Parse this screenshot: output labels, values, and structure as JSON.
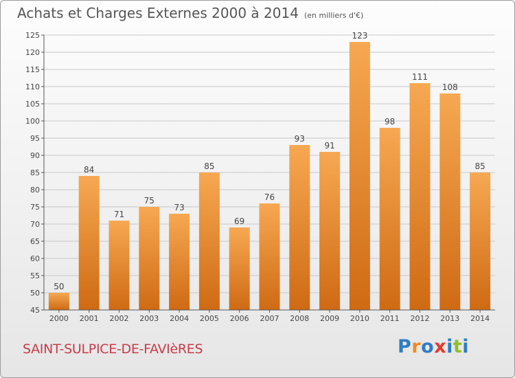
{
  "title": "Achats et Charges Externes 2000 à 2014",
  "subtitle": "(en milliers d'€)",
  "commune": "SAINT-SULPICE-DE-FAVIèRES",
  "logo": {
    "letters": [
      "P",
      "r",
      "o",
      "x",
      "i",
      "t",
      "i"
    ],
    "colors": [
      "#2f7cc4",
      "#f28c1e",
      "#2f7cc4",
      "#e23a2e",
      "#2f7cc4",
      "#8dbf2b",
      "#2f7cc4"
    ]
  },
  "colors": {
    "bar_top": "#f7a852",
    "bar_bottom": "#cf6a14",
    "grid": "#c8c8c8",
    "axis": "#555555"
  },
  "chart_data": {
    "type": "bar",
    "categories": [
      "2000",
      "2001",
      "2002",
      "2003",
      "2004",
      "2005",
      "2006",
      "2007",
      "2008",
      "2009",
      "2010",
      "2011",
      "2012",
      "2013",
      "2014"
    ],
    "values": [
      50,
      84,
      71,
      75,
      73,
      85,
      69,
      76,
      93,
      91,
      123,
      98,
      111,
      108,
      85
    ],
    "ylim": [
      45,
      125
    ],
    "yticks": [
      45,
      50,
      55,
      60,
      65,
      70,
      75,
      80,
      85,
      90,
      95,
      100,
      105,
      110,
      115,
      120,
      125
    ],
    "grid": true,
    "show_value_labels": true
  }
}
